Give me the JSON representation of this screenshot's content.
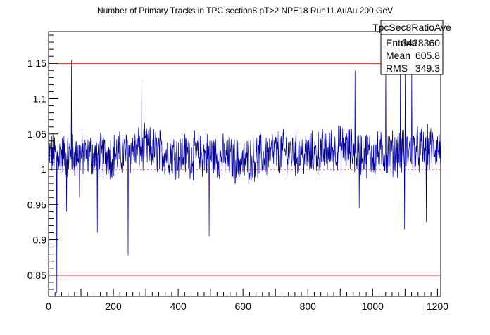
{
  "chart_data": {
    "type": "line",
    "title": "Number of Primary Tracks in TPC section8 pT>2 NPE18 Run11 AuAu 200 GeV",
    "xlabel": "",
    "ylabel": "",
    "xlim": [
      0,
      1210
    ],
    "ylim": [
      0.82,
      1.195
    ],
    "xticks": [
      0,
      200,
      400,
      600,
      800,
      1000,
      1200
    ],
    "xtick_labels": [
      "0",
      "200",
      "400",
      "600",
      "800",
      "1000",
      "1200"
    ],
    "yticks": [
      0.85,
      0.9,
      0.95,
      1.0,
      1.05,
      1.1,
      1.15
    ],
    "ytick_labels": [
      "0.85",
      "0.9",
      "0.95",
      "1",
      "1.05",
      "1.1",
      "1.15"
    ],
    "reference_lines": [
      {
        "y": 1.15,
        "color": "#ff0000",
        "style": "solid"
      },
      {
        "y": 0.85,
        "color": "#ff0000",
        "style": "solid"
      },
      {
        "y": 1.0,
        "color": "#ff0000",
        "style": "dotted"
      }
    ],
    "series": [
      {
        "color": "#000099",
        "summary": {
          "xmin": 0,
          "xmax": 1210,
          "n_points": 1210,
          "typical_band": [
            0.99,
            1.06
          ]
        },
        "band": [
          [
            0,
            1.02
          ],
          [
            100,
            1.02
          ],
          [
            200,
            1.02
          ],
          [
            300,
            1.03
          ],
          [
            400,
            1.02
          ],
          [
            500,
            1.02
          ],
          [
            600,
            1.01
          ],
          [
            700,
            1.025
          ],
          [
            800,
            1.02
          ],
          [
            900,
            1.03
          ],
          [
            1000,
            1.02
          ],
          [
            1100,
            1.025
          ],
          [
            1200,
            1.03
          ],
          [
            1210,
            1.03
          ]
        ],
        "spikes": [
          {
            "x": 70,
            "y": 1.155
          },
          {
            "x": 287,
            "y": 1.122
          },
          {
            "x": 945,
            "y": 1.14
          },
          {
            "x": 1040,
            "y": 1.155
          },
          {
            "x": 1085,
            "y": 1.155
          },
          {
            "x": 1100,
            "y": 1.135
          },
          {
            "x": 1120,
            "y": 1.145
          },
          {
            "x": 245,
            "y": 0.878
          },
          {
            "x": 495,
            "y": 0.905
          },
          {
            "x": 150,
            "y": 0.91
          },
          {
            "x": 25,
            "y": 0.825
          },
          {
            "x": 55,
            "y": 0.94
          },
          {
            "x": 95,
            "y": 0.96
          },
          {
            "x": 1165,
            "y": 0.925
          },
          {
            "x": 958,
            "y": 0.945
          },
          {
            "x": 1098,
            "y": 0.915
          }
        ]
      }
    ]
  },
  "stats_box": {
    "name": "TpcSec8RatioAve",
    "entries_label": "Entries",
    "entries_value": "3438360",
    "mean_label": "Mean",
    "mean_value": "605.8",
    "rms_label": "RMS",
    "rms_value": "349.3"
  }
}
